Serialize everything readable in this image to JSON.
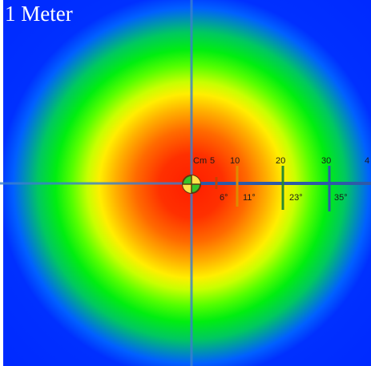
{
  "title": "1 Meter",
  "scale": {
    "distance_unit_label": "Cm",
    "distance_marks": [
      "5",
      "10",
      "20",
      "30",
      "4"
    ],
    "angle_marks": [
      "6°",
      "11°",
      "23°",
      "35°"
    ]
  },
  "colors": {
    "beam_center": "#ff1e00",
    "beam_edge": "#0024ff",
    "crosshair": "#3a7fd0",
    "scale_label": "#1a1a1a"
  },
  "icons": {
    "center": "center-target-icon"
  }
}
